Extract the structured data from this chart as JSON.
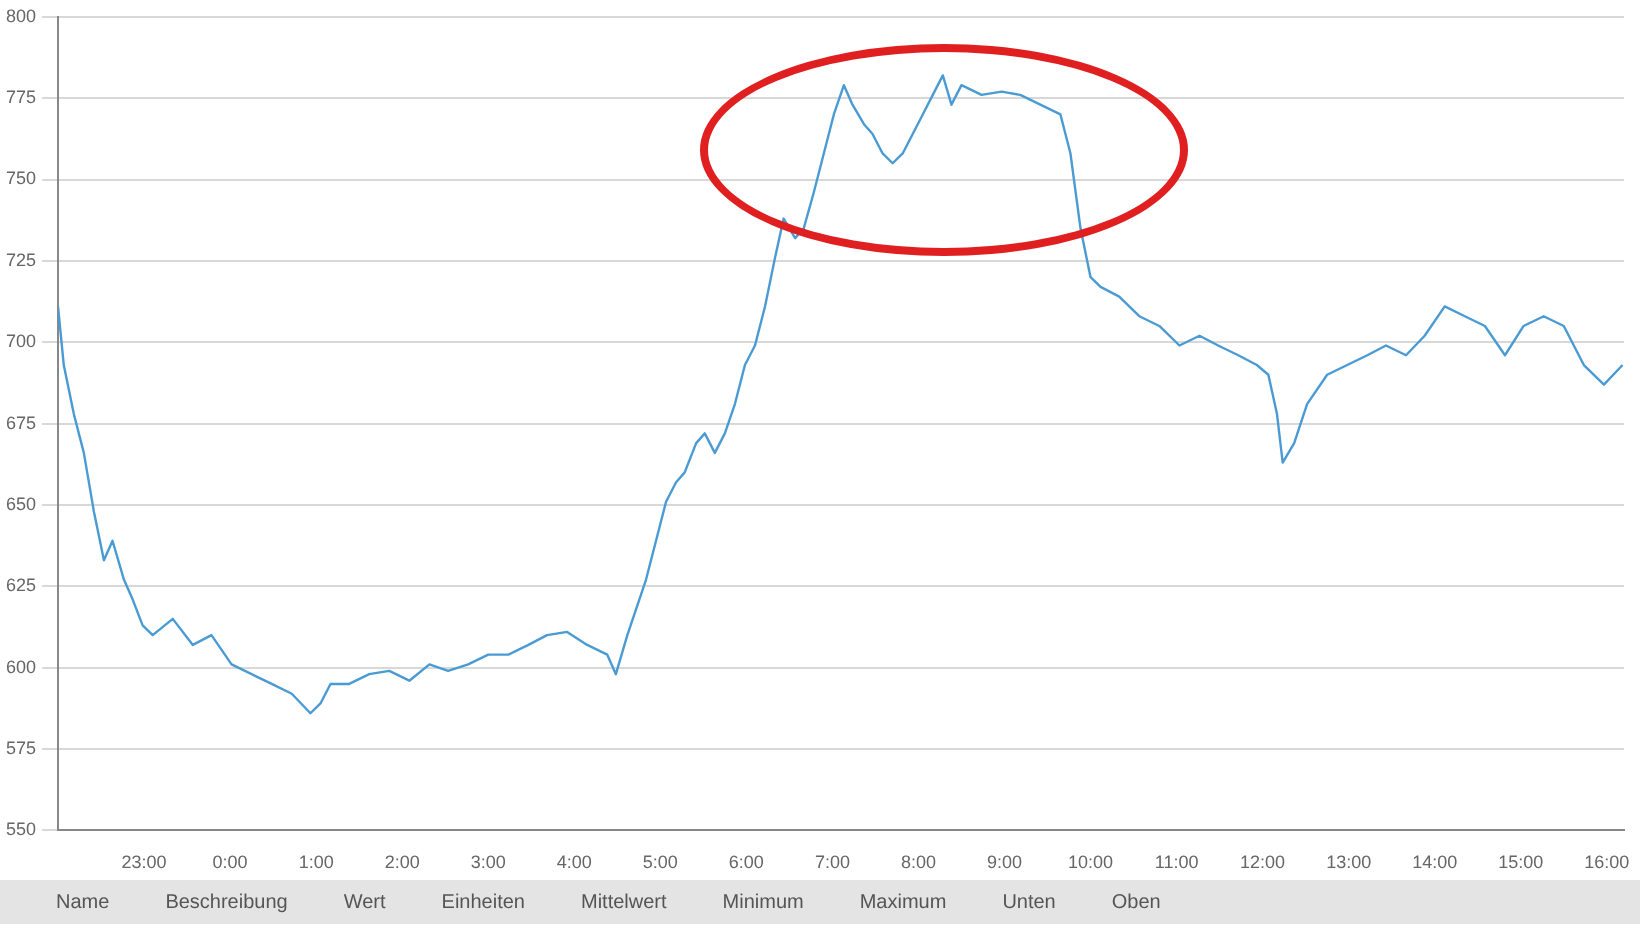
{
  "chart_data": {
    "type": "line",
    "xlim": [
      "--01-01T22:00",
      "--01-02T16:12"
    ],
    "xticks": [
      {
        "value": "--01-01T23:00",
        "label": "23:00"
      },
      {
        "value": "--01-02T00:00",
        "label": "0:00"
      },
      {
        "value": "--01-02T01:00",
        "label": "1:00"
      },
      {
        "value": "--01-02T02:00",
        "label": "2:00"
      },
      {
        "value": "--01-02T03:00",
        "label": "3:00"
      },
      {
        "value": "--01-02T04:00",
        "label": "4:00"
      },
      {
        "value": "--01-02T05:00",
        "label": "5:00"
      },
      {
        "value": "--01-02T06:00",
        "label": "6:00"
      },
      {
        "value": "--01-02T07:00",
        "label": "7:00"
      },
      {
        "value": "--01-02T08:00",
        "label": "8:00"
      },
      {
        "value": "--01-02T09:00",
        "label": "9:00"
      },
      {
        "value": "--01-02T10:00",
        "label": "10:00"
      },
      {
        "value": "--01-02T11:00",
        "label": "11:00"
      },
      {
        "value": "--01-02T12:00",
        "label": "12:00"
      },
      {
        "value": "--01-02T13:00",
        "label": "13:00"
      },
      {
        "value": "--01-02T14:00",
        "label": "14:00"
      },
      {
        "value": "--01-02T15:00",
        "label": "15:00"
      },
      {
        "value": "--01-02T16:00",
        "label": "16:00"
      }
    ],
    "ylim": [
      550,
      800
    ],
    "yticks": [
      550,
      575,
      600,
      625,
      650,
      675,
      700,
      725,
      750,
      775,
      800
    ],
    "grid": "y",
    "legend": false,
    "marker": "none",
    "line_style": "solid",
    "annotations": [
      "Name",
      "Beschreibung",
      "Wert",
      "Einheiten",
      "Mittelwert",
      "Minimum",
      "Maximum",
      "Unten",
      "Oben"
    ],
    "series": [
      {
        "color": "#4a9bd4",
        "x": [
          "--01-01T22:00",
          "--01-01T22:04",
          "--01-01T22:11",
          "--01-01T22:18",
          "--01-01T22:25",
          "--01-01T22:32",
          "--01-01T22:38",
          "--01-01T22:46",
          "--01-01T22:52",
          "--01-01T22:59",
          "--01-01T23:06",
          "--01-01T23:20",
          "--01-01T23:34",
          "--01-01T23:47",
          "--01-02T00:01",
          "--01-02T00:15",
          "--01-02T00:29",
          "--01-02T00:43",
          "--01-02T00:56",
          "--01-02T01:03",
          "--01-02T01:10",
          "--01-02T01:23",
          "--01-02T01:37",
          "--01-02T01:51",
          "--01-02T02:05",
          "--01-02T02:19",
          "--01-02T02:32",
          "--01-02T02:46",
          "--01-02T03:00",
          "--01-02T03:14",
          "--01-02T03:28",
          "--01-02T03:41",
          "--01-02T03:55",
          "--01-02T04:09",
          "--01-02T04:23",
          "--01-02T04:29",
          "--01-02T04:37",
          "--01-02T04:50",
          "--01-02T05:04",
          "--01-02T05:11",
          "--01-02T05:17",
          "--01-02T05:25",
          "--01-02T05:31",
          "--01-02T05:38",
          "--01-02T05:45",
          "--01-02T05:52",
          "--01-02T05:59",
          "--01-02T06:06",
          "--01-02T06:13",
          "--01-02T06:20",
          "--01-02T06:26",
          "--01-02T06:34",
          "--01-02T06:40",
          "--01-02T06:47",
          "--01-02T06:54",
          "--01-02T07:01",
          "--01-02T07:08",
          "--01-02T07:14",
          "--01-02T07:22",
          "--01-02T07:28",
          "--01-02T07:35",
          "--01-02T07:42",
          "--01-02T07:49",
          "--01-02T07:56",
          "--01-02T08:03",
          "--01-02T08:10",
          "--01-02T08:17",
          "--01-02T08:23",
          "--01-02T08:30",
          "--01-02T08:44",
          "--01-02T08:58",
          "--01-02T09:11",
          "--01-02T09:25",
          "--01-02T09:39",
          "--01-02T09:46",
          "--01-02T09:53",
          "--01-02T10:00",
          "--01-02T10:07",
          "--01-02T10:20",
          "--01-02T10:34",
          "--01-02T10:48",
          "--01-02T11:02",
          "--01-02T11:16",
          "--01-02T11:29",
          "--01-02T11:43",
          "--01-02T11:56",
          "--01-02T12:04",
          "--01-02T12:10",
          "--01-02T12:14",
          "--01-02T12:22",
          "--01-02T12:31",
          "--01-02T12:45",
          "--01-02T12:59",
          "--01-02T13:13",
          "--01-02T13:26",
          "--01-02T13:40",
          "--01-02T13:53",
          "--01-02T14:07",
          "--01-02T14:21",
          "--01-02T14:35",
          "--01-02T14:49",
          "--01-02T15:02",
          "--01-02T15:16",
          "--01-02T15:30",
          "--01-02T15:44",
          "--01-02T15:58",
          "--01-02T16:11"
        ],
        "values": [
          711,
          693,
          678,
          666,
          648,
          633,
          639,
          627,
          621,
          613,
          610,
          615,
          607,
          610,
          601,
          598,
          595,
          592,
          586,
          589,
          595,
          595,
          598,
          599,
          596,
          601,
          599,
          601,
          604,
          604,
          607,
          610,
          611,
          607,
          604,
          598,
          610,
          627,
          651,
          657,
          660,
          669,
          672,
          666,
          672,
          681,
          693,
          699,
          711,
          726,
          738,
          732,
          735,
          746,
          758,
          770,
          779,
          773,
          767,
          764,
          758,
          755,
          758,
          764,
          770,
          776,
          782,
          773,
          779,
          776,
          777,
          776,
          773,
          770,
          758,
          735,
          720,
          717,
          714,
          708,
          705,
          699,
          702,
          699,
          696,
          693,
          690,
          678,
          663,
          669,
          681,
          690,
          693,
          696,
          699,
          696,
          702,
          711,
          708,
          705,
          696,
          705,
          708,
          705,
          693,
          687,
          693
        ]
      }
    ]
  }
}
